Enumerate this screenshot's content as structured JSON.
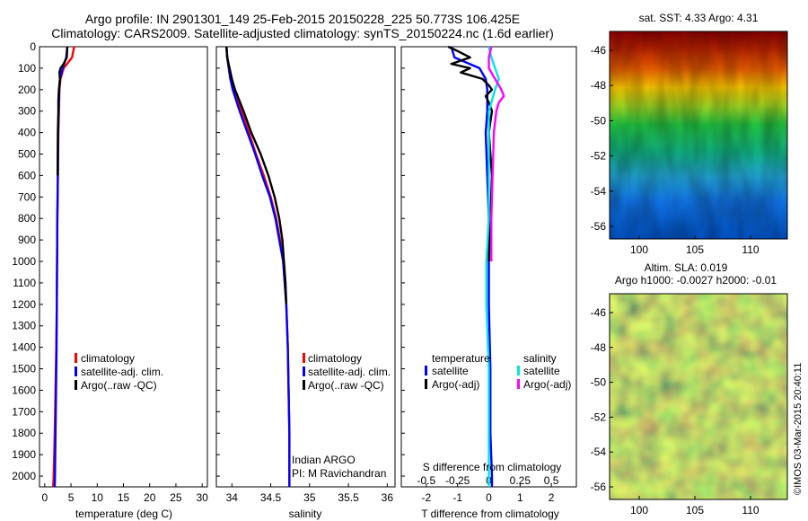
{
  "header": {
    "line1": "Argo profile: IN 2901301_149 25-Feb-2015 20150228_225 50.773S 106.425E",
    "line2": "Climatology: CARS2009. Satellite-adjusted climatology: synTS_20150224.nc (1.6d earlier)"
  },
  "colors": {
    "climatology": "#ff0000",
    "satellite": "#0000ff",
    "argo": "#000000",
    "sat_salinity": "#00e5e5",
    "argo_salinity": "#ff00ff"
  },
  "side": {
    "sst_title": "sat. SST: 4.33 Argo: 4.31",
    "sla_title1": "Altim. SLA: 0.019",
    "sla_title2": "Argo h1000: -0.0027 h2000: -0.01",
    "map_yticks": [
      "-46",
      "-48",
      "-50",
      "-52",
      "-54",
      "-56"
    ],
    "map_xticks": [
      "100",
      "105",
      "110"
    ],
    "credit": "©IMOS 03-Mar-2015 20:40:11"
  },
  "chart_data": [
    {
      "type": "line",
      "panel": "temperature",
      "xlabel": "temperature (deg C)",
      "ylim": [
        2050,
        0
      ],
      "xlim": [
        -1,
        31
      ],
      "xticks": [
        0,
        5,
        10,
        15,
        20,
        25,
        30
      ],
      "yticks": [
        0,
        100,
        200,
        300,
        400,
        500,
        600,
        700,
        800,
        900,
        1000,
        1100,
        1200,
        1300,
        1400,
        1500,
        1600,
        1700,
        1800,
        1900,
        2000
      ],
      "legend": [
        "climatology",
        "satellite-adj. clim.",
        "Argo(..raw -QC)"
      ],
      "series": [
        {
          "name": "climatology",
          "depth": [
            0,
            50,
            100,
            150,
            200,
            300,
            400,
            600,
            800,
            1000,
            1200,
            1400,
            1600,
            1800,
            2000,
            2050
          ],
          "values": [
            5.6,
            5.2,
            3.6,
            3.0,
            2.8,
            2.7,
            2.6,
            2.5,
            2.4,
            2.35,
            2.3,
            2.2,
            2.05,
            1.9,
            1.7,
            1.6
          ]
        },
        {
          "name": "satellite-adj. clim.",
          "depth": [
            0,
            50,
            100,
            150,
            200,
            300,
            400,
            600,
            800,
            1000,
            1200,
            1400,
            1600,
            1800,
            2000,
            2050
          ],
          "values": [
            4.3,
            4.1,
            3.4,
            2.9,
            2.75,
            2.65,
            2.55,
            2.5,
            2.4,
            2.35,
            2.3,
            2.25,
            2.15,
            2.05,
            1.95,
            1.9
          ]
        },
        {
          "name": "Argo(..raw -QC)",
          "depth": [
            0,
            50,
            80,
            100,
            120,
            150,
            200,
            250,
            300,
            400,
            600
          ],
          "values": [
            4.3,
            4.2,
            3.6,
            3.0,
            2.8,
            2.9,
            2.7,
            2.6,
            2.6,
            2.5,
            2.45
          ]
        }
      ]
    },
    {
      "type": "line",
      "panel": "salinity",
      "xlabel": "salinity",
      "ylim": [
        2050,
        0
      ],
      "xlim": [
        33.8,
        36.1
      ],
      "xticks": [
        "34",
        "34.5",
        "35",
        "35.5",
        "36"
      ],
      "legend": [
        "climatology",
        "satellite-adj. clim.",
        "Argo(..raw -QC)"
      ],
      "annotation": [
        "Indian ARGO",
        "PI: M Ravichandran"
      ],
      "series": [
        {
          "name": "climatology",
          "depth": [
            0,
            50,
            100,
            150,
            200,
            300,
            400,
            500,
            600,
            700,
            800,
            900,
            1000,
            1200,
            1400,
            1600,
            1800,
            2000,
            2050
          ],
          "values": [
            33.93,
            33.94,
            33.96,
            33.98,
            34.02,
            34.12,
            34.22,
            34.31,
            34.41,
            34.5,
            34.57,
            34.62,
            34.66,
            34.7,
            34.72,
            34.73,
            34.74,
            34.74,
            34.74
          ]
        },
        {
          "name": "satellite-adj. clim.",
          "depth": [
            0,
            50,
            100,
            150,
            200,
            300,
            400,
            500,
            600,
            700,
            800,
            900,
            1000,
            1200,
            1400,
            1600,
            1800,
            2000,
            2050
          ],
          "values": [
            33.93,
            33.94,
            33.96,
            33.98,
            34.01,
            34.1,
            34.2,
            34.3,
            34.39,
            34.49,
            34.56,
            34.61,
            34.66,
            34.7,
            34.72,
            34.73,
            34.74,
            34.74,
            34.74
          ]
        },
        {
          "name": "Argo(..raw -QC)",
          "depth": [
            0,
            50,
            100,
            150,
            200,
            300,
            400,
            500,
            600,
            700,
            800,
            900,
            1000,
            1100,
            1200
          ],
          "values": [
            33.93,
            33.94,
            33.97,
            34.0,
            34.04,
            34.15,
            34.25,
            34.37,
            34.47,
            34.55,
            34.61,
            34.65,
            34.67,
            34.69,
            34.7
          ]
        }
      ]
    },
    {
      "type": "line",
      "panel": "differences",
      "xlabel": "T difference from climatology",
      "xlabel_top": "S difference from climatology",
      "ylim": [
        2050,
        0
      ],
      "xlim": [
        -2.8,
        2.8
      ],
      "xticks": [
        "-2",
        "-1",
        "0",
        "1",
        "2"
      ],
      "top_xticks": [
        "-0.5",
        "-0.25",
        "0",
        "0.25",
        "0.5"
      ],
      "legend_headers": [
        "temperature",
        "salinity"
      ],
      "legend": [
        "satellite",
        "Argo(-adj)",
        "satellite",
        "Argo(-adj)"
      ],
      "series": [
        {
          "name": "satellite",
          "depth": [
            0,
            50,
            100,
            150,
            200,
            300,
            400,
            600,
            800,
            1000,
            1200,
            1500,
            1800,
            2000,
            2050
          ],
          "values": [
            -1.2,
            -1.1,
            -0.3,
            -0.1,
            -0.05,
            -0.05,
            -0.1,
            -0.05,
            0.0,
            0.0,
            0.0,
            0.05,
            0.05,
            0.1,
            0.1
          ]
        },
        {
          "name": "Argo(-adj)",
          "depth": [
            0,
            20,
            50,
            80,
            100,
            120,
            150,
            180,
            200,
            230,
            260,
            300,
            400,
            600,
            800,
            1000
          ],
          "values": [
            -1.3,
            -1.0,
            -0.6,
            -1.2,
            -0.6,
            -0.9,
            -0.2,
            0.0,
            0.1,
            -0.1,
            0.0,
            0.1,
            0.0,
            0.1,
            0.05,
            0.0
          ]
        },
        {
          "name": "satellite",
          "depth": [
            0,
            50,
            100,
            150,
            200,
            300,
            400,
            600,
            800,
            1000,
            1200,
            1500,
            1800,
            2000,
            2050
          ],
          "values": [
            0.0,
            0.02,
            0.05,
            0.08,
            0.05,
            0.0,
            0.0,
            0.0,
            0.0,
            -0.02,
            -0.02,
            0.0,
            0.0,
            0.0,
            0.0
          ]
        },
        {
          "name": "Argo(-adj)",
          "depth": [
            0,
            50,
            100,
            150,
            200,
            230,
            260,
            300,
            400,
            600,
            800,
            1000
          ],
          "values": [
            0.02,
            0.0,
            0.0,
            0.05,
            0.1,
            0.12,
            0.08,
            0.06,
            0.04,
            0.03,
            0.02,
            0.02
          ]
        }
      ]
    }
  ]
}
